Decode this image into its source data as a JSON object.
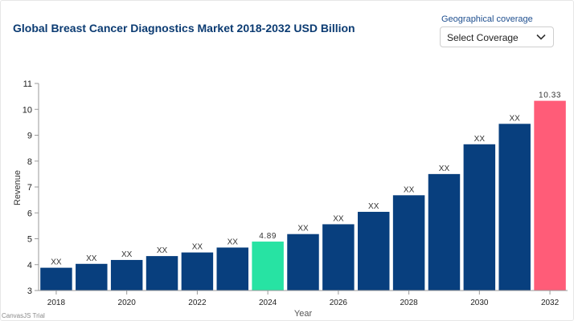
{
  "header": {
    "title": "Global Breast Cancer Diagnostics Market 2018-2032 USD Billion"
  },
  "coverage": {
    "label": "Geographical coverage",
    "selected": "Select Coverage"
  },
  "watermark": "CanvasJS Trial",
  "colors": {
    "bar": "#083f7e",
    "highlight_current": "#27e3a3",
    "highlight_forecast": "#ff5c78",
    "title": "#0b3b72"
  },
  "chart_data": {
    "type": "bar",
    "title": "Global Breast Cancer Diagnostics Market 2018-2032 USD Billion",
    "xlabel": "Year",
    "ylabel": "Revenue",
    "ylim": [
      3,
      11
    ],
    "yticks": [
      "3",
      "4",
      "5",
      "6",
      "7",
      "8",
      "9",
      "10",
      "11"
    ],
    "xtick_labels": [
      "2018",
      "2020",
      "2022",
      "2024",
      "2026",
      "2028",
      "2030",
      "2032"
    ],
    "categories": [
      "2018",
      "2019",
      "2020",
      "2021",
      "2022",
      "2023",
      "2024",
      "2025",
      "2026",
      "2027",
      "2028",
      "2029",
      "2030",
      "2031",
      "2032"
    ],
    "values": [
      3.88,
      4.03,
      4.18,
      4.33,
      4.47,
      4.66,
      4.89,
      5.18,
      5.56,
      6.04,
      6.68,
      7.5,
      8.65,
      9.44,
      10.33
    ],
    "labels": [
      "XX",
      "XX",
      "XX",
      "XX",
      "XX",
      "XX",
      "4.89",
      "XX",
      "XX",
      "XX",
      "XX",
      "XX",
      "XX",
      "XX",
      "10.33"
    ],
    "highlight": {
      "2024": "#27e3a3",
      "2032": "#ff5c78"
    },
    "grid": false,
    "legend": "none"
  }
}
